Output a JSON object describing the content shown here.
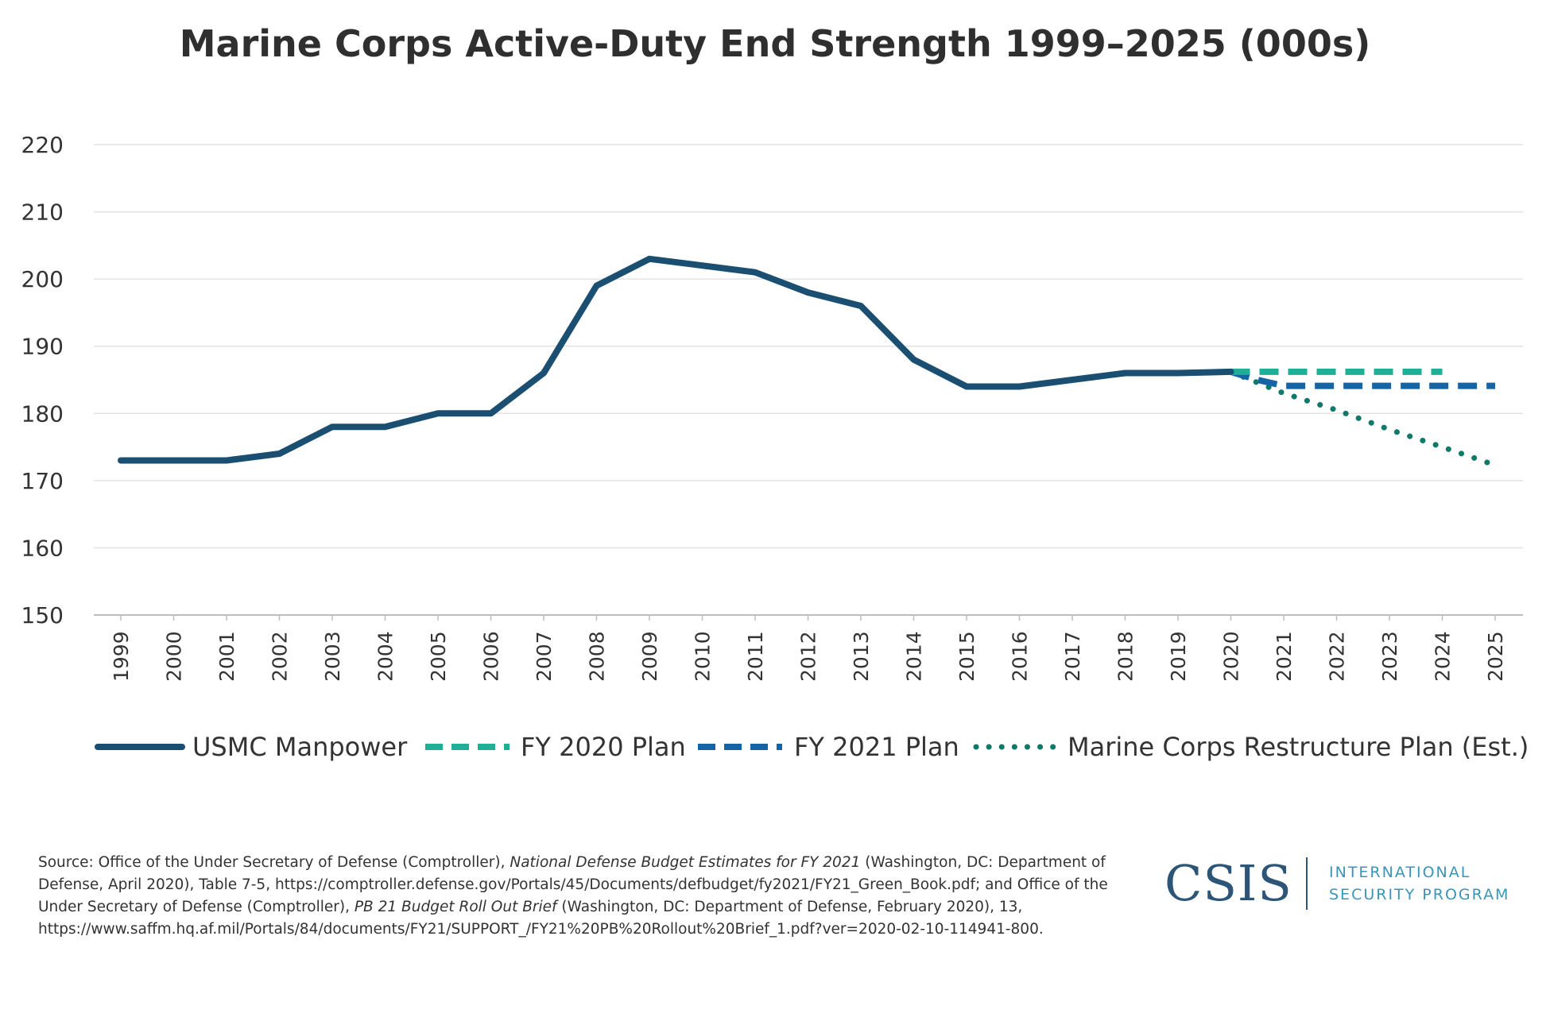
{
  "chart_data": {
    "type": "line",
    "title": "Marine Corps Active-Duty End Strength 1999–2025 (000s)",
    "xlabel": "",
    "ylabel": "",
    "ylim": [
      150,
      220
    ],
    "yticks": [
      "150",
      "160",
      "170",
      "180",
      "190",
      "200",
      "210",
      "220"
    ],
    "categories": [
      "1999",
      "2000",
      "2001",
      "2002",
      "2003",
      "2004",
      "2005",
      "2006",
      "2007",
      "2008",
      "2009",
      "2010",
      "2011",
      "2012",
      "2013",
      "2014",
      "2015",
      "2016",
      "2017",
      "2018",
      "2019",
      "2020",
      "2021",
      "2022",
      "2023",
      "2024",
      "2025"
    ],
    "grid": true,
    "legend_position": "bottom",
    "series": [
      {
        "name": "USMC Manpower",
        "style": "solid",
        "color": "#1b4f72",
        "points": [
          [
            0,
            173
          ],
          [
            1,
            173
          ],
          [
            2,
            173
          ],
          [
            3,
            174
          ],
          [
            4,
            178
          ],
          [
            5,
            178
          ],
          [
            6,
            180
          ],
          [
            7,
            180
          ],
          [
            8,
            186
          ],
          [
            9,
            199
          ],
          [
            10,
            203
          ],
          [
            11,
            202
          ],
          [
            12,
            201
          ],
          [
            13,
            198
          ],
          [
            14,
            196
          ],
          [
            15,
            188
          ],
          [
            16,
            184
          ],
          [
            17,
            184
          ],
          [
            18,
            185
          ],
          [
            19,
            186
          ],
          [
            20,
            186
          ],
          [
            21,
            186.2
          ]
        ]
      },
      {
        "name": "FY 2020 Plan",
        "style": "dashed",
        "color": "#1fae96",
        "points": [
          [
            21,
            186.2
          ],
          [
            22,
            186.2
          ],
          [
            23,
            186.2
          ],
          [
            24,
            186.2
          ],
          [
            25,
            186.2
          ]
        ]
      },
      {
        "name": "FY 2021 Plan",
        "style": "dashed",
        "color": "#1565a6",
        "points": [
          [
            21,
            186.2
          ],
          [
            21.5,
            185
          ],
          [
            22,
            184.1
          ],
          [
            23,
            184.1
          ],
          [
            24,
            184.1
          ],
          [
            25,
            184.1
          ],
          [
            26,
            184.1
          ]
        ]
      },
      {
        "name": "Marine Corps Restructure Plan (Est.)",
        "style": "dotted",
        "color": "#0f7a6a",
        "points": [
          [
            21,
            186.2
          ],
          [
            22,
            183
          ],
          [
            23,
            180.5
          ],
          [
            24,
            177.6
          ],
          [
            25,
            175
          ],
          [
            26,
            172.3
          ]
        ]
      }
    ]
  },
  "source": {
    "prefix": "Source: Office of the Under Secretary of Defense (Comptroller), ",
    "title1": "National Defense Budget Estimates for FY 2021",
    "mid1": " (Washington, DC: Department of Defense, April 2020), Table 7-5, https://comptroller.defense.gov/Portals/45/Documents/defbudget/fy2021/FY21_Green_Book.pdf; and Office of the Under Secretary of Defense (Comptroller), ",
    "title2": "PB 21 Budget Roll Out Brief",
    "mid2": " (Washington, DC: Department of Defense, February 2020), 13, https://www.saffm.hq.af.mil/Portals/84/documents/FY21/SUPPORT_/FY21%20PB%20Rollout%20Brief_1.pdf?ver=2020-02-10-114941-800."
  },
  "logo": {
    "name": "CSIS",
    "line1": "INTERNATIONAL",
    "line2": "SECURITY PROGRAM"
  }
}
